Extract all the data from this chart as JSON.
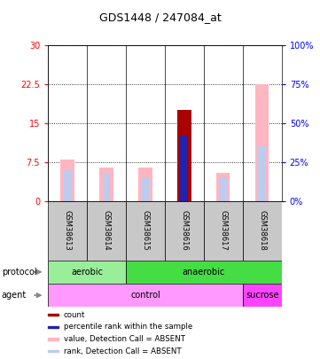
{
  "title": "GDS1448 / 247084_at",
  "samples": [
    "GSM38613",
    "GSM38614",
    "GSM38615",
    "GSM38616",
    "GSM38617",
    "GSM38618"
  ],
  "pink_bar_heights": [
    8.0,
    6.5,
    6.5,
    17.5,
    5.5,
    22.5
  ],
  "blue_bar_heights": [
    6.0,
    5.5,
    4.5,
    12.5,
    4.5,
    10.5
  ],
  "red_bar_height": 17.5,
  "red_bar_index": 3,
  "dark_blue_bar_height": 12.5,
  "dark_blue_bar_index": 3,
  "ylim_left": [
    0,
    30
  ],
  "ylim_right": [
    0,
    100
  ],
  "yticks_left": [
    0,
    7.5,
    15,
    22.5,
    30
  ],
  "yticks_right": [
    0,
    25,
    50,
    75,
    100
  ],
  "ytick_labels_left": [
    "0",
    "7.5",
    "15",
    "22.5",
    "30"
  ],
  "ytick_labels_right": [
    "0%",
    "25%",
    "50%",
    "75%",
    "100%"
  ],
  "protocol_labels": [
    "aerobic",
    "anaerobic"
  ],
  "agent_labels": [
    "control",
    "sucrose"
  ],
  "color_aerobic": "#99EE99",
  "color_anaerobic": "#44DD44",
  "color_control": "#FF99FF",
  "color_sucrose": "#FF44FF",
  "color_pink_bar": "#FFB6C1",
  "color_blue_bar": "#BBCCEE",
  "color_red_bar": "#AA0000",
  "color_dark_blue_bar": "#2222AA",
  "legend_items": [
    "count",
    "percentile rank within the sample",
    "value, Detection Call = ABSENT",
    "rank, Detection Call = ABSENT"
  ],
  "legend_colors": [
    "#AA0000",
    "#2222AA",
    "#FFB6C1",
    "#BBCCEE"
  ],
  "pink_bar_width": 0.35,
  "blue_bar_width": 0.2,
  "red_bar_width": 0.35,
  "dark_blue_bar_width": 0.2
}
